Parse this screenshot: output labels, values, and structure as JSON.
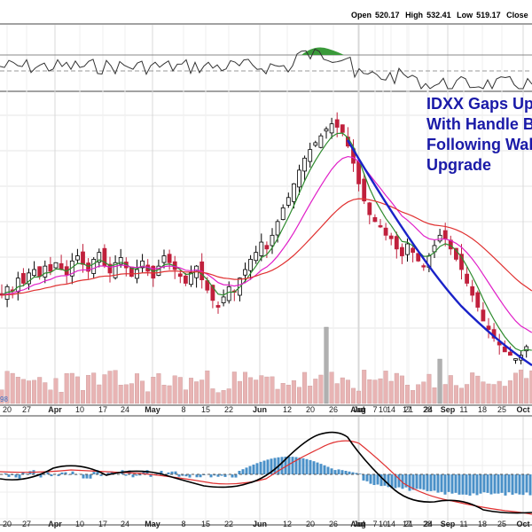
{
  "quote": {
    "open_label": "Open",
    "open": "520.17",
    "high_label": "High",
    "high": "532.41",
    "low_label": "Low",
    "low": "519.17",
    "close_label": "Close"
  },
  "headline": [
    "IDXX Gaps Up",
    "With Handle B",
    "Following Wal",
    "Upgrade"
  ],
  "macd_label_fragment": "98",
  "colors": {
    "up_candle": "#000000",
    "down_candle": "#c0203c",
    "ema_short": "#2e8b2e",
    "ema_mid": "#e020c8",
    "ema_long": "#e03030",
    "trend_arc": "#1a22c8",
    "volume_bar": "#e8b4b4",
    "volume_spike": "#b0b0b0",
    "macd_line": "#000000",
    "signal_line": "#e03030",
    "histogram": "#4a90c8",
    "headline": "#1a1aa8"
  },
  "chart_data": {
    "type": "candlestick",
    "title": "",
    "panels": [
      "rsi",
      "price",
      "volume",
      "macd"
    ],
    "x_axis_labels": [
      "20",
      "27",
      "Apr",
      "10",
      "17",
      "24",
      "May",
      "8",
      "15",
      "22",
      "Jun",
      "12",
      "20",
      "26",
      "Jul",
      "10",
      "17",
      "24",
      "Aug",
      "7",
      "14",
      "21",
      "28",
      "Sep",
      "11",
      "18",
      "25",
      "Oct"
    ],
    "series": [
      {
        "name": "price",
        "values": [
          505,
          510,
          508,
          515,
          512,
          518,
          520,
          516,
          522,
          519,
          524,
          520,
          517,
          525,
          528,
          523,
          519,
          526,
          530,
          522,
          518,
          524,
          527,
          521,
          516,
          520,
          525,
          519,
          515,
          522,
          528,
          524,
          520,
          516,
          512,
          518,
          522,
          514,
          508,
          502,
          498,
          504,
          510,
          507,
          515,
          520,
          526,
          530,
          536,
          532,
          540,
          548,
          556,
          562,
          570,
          578,
          585,
          590,
          594,
          598,
          602,
          605,
          603,
          600,
          592,
          582,
          570,
          560,
          552,
          548,
          545,
          540,
          538,
          532,
          528,
          535,
          530,
          525,
          522,
          528,
          534,
          540,
          538,
          532,
          526,
          520,
          512,
          505,
          498,
          490,
          485,
          480,
          476,
          472,
          470,
          468,
          470,
          475,
          472
        ]
      },
      {
        "name": "ema_short",
        "values": []
      },
      {
        "name": "ema_mid",
        "values": []
      },
      {
        "name": "ema_long",
        "values": []
      }
    ],
    "volume_spikes": [
      370,
      497
    ],
    "grid": true
  }
}
